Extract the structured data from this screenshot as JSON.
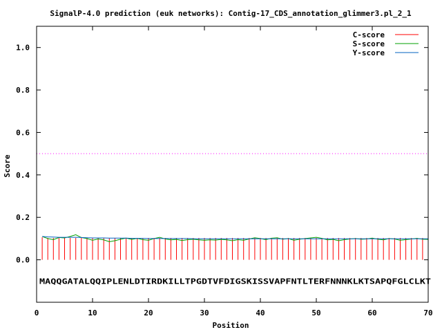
{
  "chart_data": {
    "type": "line",
    "title": "SignalP-4.0 prediction (euk networks): Contig-17_CDS_annotation_glimmer3.pl_2_1",
    "xlabel": "Position",
    "ylabel": "Score",
    "xlim": [
      0,
      70
    ],
    "ylim": [
      -0.2,
      1.1
    ],
    "xticks": [
      "0",
      "10",
      "20",
      "30",
      "40",
      "50",
      "60",
      "70"
    ],
    "yticks": [
      "0.0",
      "0.2",
      "0.4",
      "0.6",
      "0.8",
      "1.0"
    ],
    "grid": false,
    "legend_position": "top-right",
    "threshold": 0.5,
    "threshold_color": "#ff00ff",
    "sequence": "MAQQGATALQQIPLENLDTIRDKILLTPGDTVFDIGSKISSVAPFNTLTERFNNNKLKTSAPQFGLCLKT",
    "series": [
      {
        "name": "C-score",
        "color": "#ff0000",
        "render": "stems",
        "values": [
          0.106,
          0.103,
          0.103,
          0.103,
          0.103,
          0.103,
          0.103,
          0.103,
          0.103,
          0.103,
          0.103,
          0.103,
          0.103,
          0.103,
          0.103,
          0.103,
          0.103,
          0.103,
          0.103,
          0.103,
          0.103,
          0.103,
          0.103,
          0.103,
          0.103,
          0.103,
          0.103,
          0.103,
          0.103,
          0.103,
          0.103,
          0.103,
          0.103,
          0.103,
          0.103,
          0.103,
          0.103,
          0.103,
          0.103,
          0.103,
          0.103,
          0.103,
          0.103,
          0.103,
          0.103,
          0.103,
          0.103,
          0.103,
          0.103,
          0.103,
          0.103,
          0.103,
          0.103,
          0.103,
          0.103,
          0.103,
          0.103,
          0.103,
          0.103,
          0.103,
          0.103,
          0.103,
          0.103,
          0.103,
          0.103,
          0.103,
          0.103,
          0.103,
          0.103,
          0.103
        ]
      },
      {
        "name": "S-score",
        "color": "#00a000",
        "render": "line",
        "values": [
          0.11,
          0.1,
          0.095,
          0.105,
          0.103,
          0.11,
          0.118,
          0.105,
          0.1,
          0.092,
          0.098,
          0.094,
          0.085,
          0.09,
          0.097,
          0.102,
          0.096,
          0.101,
          0.095,
          0.092,
          0.1,
          0.106,
          0.098,
          0.094,
          0.096,
          0.091,
          0.095,
          0.097,
          0.094,
          0.092,
          0.094,
          0.093,
          0.096,
          0.094,
          0.09,
          0.095,
          0.092,
          0.098,
          0.104,
          0.1,
          0.095,
          0.102,
          0.104,
          0.097,
          0.1,
          0.092,
          0.097,
          0.1,
          0.103,
          0.106,
          0.101,
          0.094,
          0.096,
          0.09,
          0.095,
          0.098,
          0.1,
          0.097,
          0.098,
          0.102,
          0.097,
          0.094,
          0.1,
          0.098,
          0.092,
          0.095,
          0.098,
          0.101,
          0.097,
          0.096
        ]
      },
      {
        "name": "Y-score",
        "color": "#0060c0",
        "render": "line",
        "values": [
          0.11,
          0.108,
          0.107,
          0.106,
          0.106,
          0.106,
          0.106,
          0.105,
          0.104,
          0.103,
          0.103,
          0.103,
          0.102,
          0.102,
          0.102,
          0.102,
          0.101,
          0.101,
          0.101,
          0.1,
          0.1,
          0.1,
          0.1,
          0.1,
          0.1,
          0.1,
          0.1,
          0.099,
          0.099,
          0.099,
          0.099,
          0.099,
          0.099,
          0.099,
          0.099,
          0.099,
          0.099,
          0.099,
          0.099,
          0.099,
          0.099,
          0.099,
          0.099,
          0.099,
          0.099,
          0.099,
          0.099,
          0.099,
          0.099,
          0.099,
          0.099,
          0.099,
          0.099,
          0.099,
          0.099,
          0.099,
          0.099,
          0.099,
          0.099,
          0.099,
          0.099,
          0.099,
          0.099,
          0.099,
          0.099,
          0.099,
          0.099,
          0.099,
          0.099,
          0.099
        ]
      }
    ]
  }
}
